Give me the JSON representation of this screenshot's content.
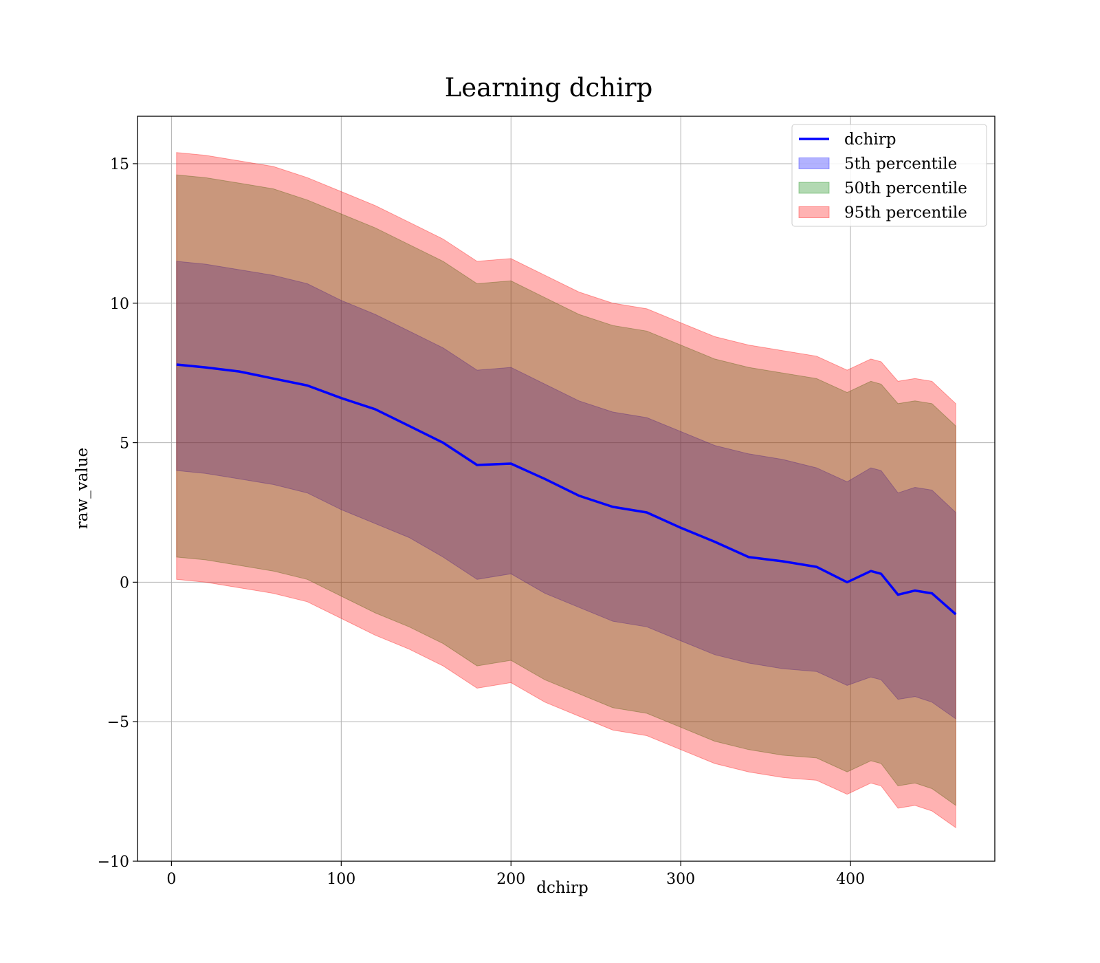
{
  "chart_data": {
    "type": "area",
    "title": "Learning dchirp",
    "xlabel": "dchirp",
    "ylabel": "raw_value",
    "xlim": [
      -20,
      485
    ],
    "ylim": [
      -10,
      16.7
    ],
    "xticks": [
      0,
      100,
      200,
      300,
      400
    ],
    "yticks": [
      -10,
      -5,
      0,
      5,
      10,
      15
    ],
    "xtick_labels": [
      "0",
      "100",
      "200",
      "300",
      "400"
    ],
    "ytick_labels": [
      "−10",
      "−5",
      "0",
      "5",
      "10",
      "15"
    ],
    "grid": true,
    "legend_position": "top-right",
    "x": [
      3,
      20,
      40,
      60,
      80,
      100,
      120,
      140,
      160,
      180,
      200,
      220,
      240,
      260,
      280,
      300,
      320,
      340,
      360,
      380,
      398,
      412,
      418,
      428,
      438,
      448,
      462
    ],
    "series": [
      {
        "name": "dchirp",
        "kind": "line",
        "color": "#0000ff",
        "values": [
          7.8,
          7.7,
          7.55,
          7.3,
          7.05,
          6.6,
          6.2,
          5.6,
          5.0,
          4.2,
          4.25,
          3.7,
          3.1,
          2.7,
          2.5,
          1.95,
          1.45,
          0.9,
          0.75,
          0.55,
          0.0,
          0.4,
          0.3,
          -0.45,
          -0.3,
          -0.4,
          -1.15
        ]
      },
      {
        "name": "5th percentile",
        "kind": "band",
        "color": "#0000ff",
        "upper": [
          11.5,
          11.4,
          11.2,
          11.0,
          10.7,
          10.1,
          9.6,
          9.0,
          8.4,
          7.6,
          7.7,
          7.1,
          6.5,
          6.1,
          5.9,
          5.4,
          4.9,
          4.6,
          4.4,
          4.1,
          3.6,
          4.1,
          4.0,
          3.2,
          3.4,
          3.3,
          2.5
        ],
        "lower": [
          4.0,
          3.9,
          3.7,
          3.5,
          3.2,
          2.6,
          2.1,
          1.6,
          0.9,
          0.1,
          0.3,
          -0.4,
          -0.9,
          -1.4,
          -1.6,
          -2.1,
          -2.6,
          -2.9,
          -3.1,
          -3.2,
          -3.7,
          -3.4,
          -3.5,
          -4.2,
          -4.1,
          -4.3,
          -4.9
        ]
      },
      {
        "name": "50th percentile",
        "kind": "band",
        "color": "#008000",
        "upper": [
          14.6,
          14.5,
          14.3,
          14.1,
          13.7,
          13.2,
          12.7,
          12.1,
          11.5,
          10.7,
          10.8,
          10.2,
          9.6,
          9.2,
          9.0,
          8.5,
          8.0,
          7.7,
          7.5,
          7.3,
          6.8,
          7.2,
          7.1,
          6.4,
          6.5,
          6.4,
          5.6
        ],
        "lower": [
          0.9,
          0.8,
          0.6,
          0.4,
          0.1,
          -0.5,
          -1.1,
          -1.6,
          -2.2,
          -3.0,
          -2.8,
          -3.5,
          -4.0,
          -4.5,
          -4.7,
          -5.2,
          -5.7,
          -6.0,
          -6.2,
          -6.3,
          -6.8,
          -6.4,
          -6.5,
          -7.3,
          -7.2,
          -7.4,
          -8.0
        ]
      },
      {
        "name": "95th percentile",
        "kind": "band",
        "color": "#ff0000",
        "upper": [
          15.4,
          15.3,
          15.1,
          14.9,
          14.5,
          14.0,
          13.5,
          12.9,
          12.3,
          11.5,
          11.6,
          11.0,
          10.4,
          10.0,
          9.8,
          9.3,
          8.8,
          8.5,
          8.3,
          8.1,
          7.6,
          8.0,
          7.9,
          7.2,
          7.3,
          7.2,
          6.4
        ],
        "lower": [
          0.1,
          0.0,
          -0.2,
          -0.4,
          -0.7,
          -1.3,
          -1.9,
          -2.4,
          -3.0,
          -3.8,
          -3.6,
          -4.3,
          -4.8,
          -5.3,
          -5.5,
          -6.0,
          -6.5,
          -6.8,
          -7.0,
          -7.1,
          -7.6,
          -7.2,
          -7.3,
          -8.1,
          -8.0,
          -8.2,
          -8.8
        ]
      }
    ]
  }
}
